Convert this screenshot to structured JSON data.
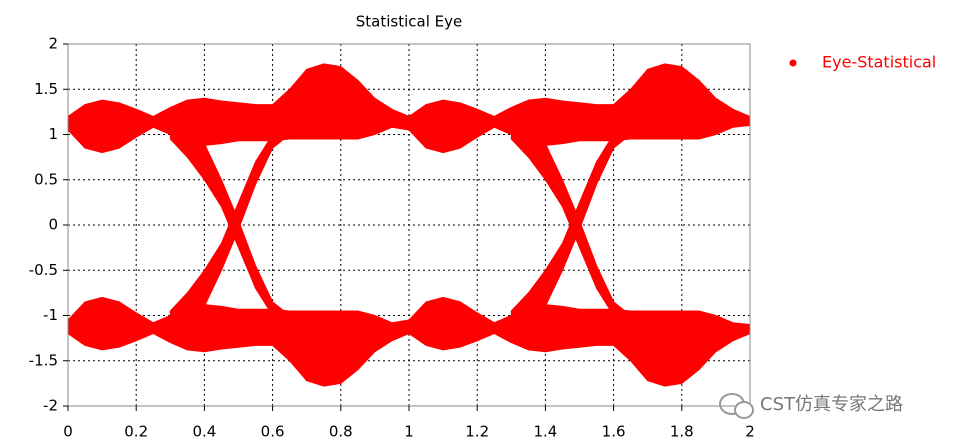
{
  "chart_data": {
    "type": "eye",
    "title": "Statistical Eye",
    "xlim": [
      0,
      2
    ],
    "xticks": [
      0,
      0.2,
      0.4,
      0.6,
      0.8,
      1,
      1.2,
      1.4,
      1.6,
      1.8,
      2
    ],
    "ylim": [
      -2,
      2
    ],
    "yticks": [
      -2,
      -1.5,
      -1,
      -0.5,
      0,
      0.5,
      1,
      1.5,
      2
    ],
    "grid": true,
    "legend": "right",
    "series": [
      {
        "name": "Eye-Statistical",
        "color": "#ff0000",
        "bands": [
          {
            "x": [
              0,
              0.05,
              0.1,
              0.15,
              0.2,
              0.25,
              0.3,
              0.35,
              0.4,
              0.45,
              0.5,
              0.55,
              0.6,
              0.65,
              0.7,
              0.75,
              0.8,
              0.85,
              0.9,
              0.95,
              1,
              1.05,
              1.1,
              1.15,
              1.2,
              1.25,
              1.3,
              1.35,
              1.4,
              1.45,
              1.5,
              1.55,
              1.6,
              1.65,
              1.7,
              1.75,
              1.8,
              1.85,
              1.9,
              1.95,
              2
            ],
            "upper": [
              1.2,
              1.33,
              1.38,
              1.35,
              1.28,
              1.2,
              1.3,
              1.38,
              1.4,
              1.37,
              1.35,
              1.33,
              1.33,
              1.5,
              1.72,
              1.78,
              1.75,
              1.6,
              1.4,
              1.28,
              1.2,
              1.33,
              1.38,
              1.35,
              1.28,
              1.2,
              1.3,
              1.38,
              1.4,
              1.37,
              1.35,
              1.33,
              1.33,
              1.5,
              1.72,
              1.78,
              1.75,
              1.6,
              1.4,
              1.28,
              1.2
            ],
            "lower": [
              1.05,
              0.85,
              0.8,
              0.85,
              0.97,
              1.08,
              1.0,
              0.92,
              0.88,
              0.9,
              0.93,
              0.93,
              0.93,
              0.95,
              0.95,
              0.95,
              0.95,
              0.95,
              1.0,
              1.08,
              1.05,
              0.85,
              0.8,
              0.85,
              0.97,
              1.08,
              1.0,
              0.92,
              0.88,
              0.9,
              0.93,
              0.93,
              0.93,
              0.95,
              0.95,
              0.95,
              0.95,
              0.95,
              1.0,
              1.08,
              1.1
            ]
          },
          {
            "x": [
              0,
              0.05,
              0.1,
              0.15,
              0.2,
              0.25,
              0.3,
              0.35,
              0.4,
              0.45,
              0.5,
              0.55,
              0.6,
              0.65,
              0.7,
              0.75,
              0.8,
              0.85,
              0.9,
              0.95,
              1,
              1.05,
              1.1,
              1.15,
              1.2,
              1.25,
              1.3,
              1.35,
              1.4,
              1.45,
              1.5,
              1.55,
              1.6,
              1.65,
              1.7,
              1.75,
              1.8,
              1.85,
              1.9,
              1.95,
              2
            ],
            "upper": [
              -1.05,
              -0.85,
              -0.8,
              -0.85,
              -0.97,
              -1.08,
              -1.0,
              -0.92,
              -0.88,
              -0.9,
              -0.93,
              -0.93,
              -0.93,
              -0.95,
              -0.95,
              -0.95,
              -0.95,
              -0.95,
              -1.0,
              -1.08,
              -1.05,
              -0.85,
              -0.8,
              -0.85,
              -0.97,
              -1.08,
              -1.0,
              -0.92,
              -0.88,
              -0.9,
              -0.93,
              -0.93,
              -0.93,
              -0.95,
              -0.95,
              -0.95,
              -0.95,
              -0.95,
              -1.0,
              -1.08,
              -1.1
            ],
            "lower": [
              -1.2,
              -1.33,
              -1.38,
              -1.35,
              -1.28,
              -1.2,
              -1.3,
              -1.38,
              -1.4,
              -1.37,
              -1.35,
              -1.33,
              -1.33,
              -1.5,
              -1.72,
              -1.78,
              -1.75,
              -1.6,
              -1.4,
              -1.28,
              -1.2,
              -1.33,
              -1.38,
              -1.35,
              -1.28,
              -1.2,
              -1.3,
              -1.38,
              -1.4,
              -1.37,
              -1.35,
              -1.33,
              -1.33,
              -1.5,
              -1.72,
              -1.78,
              -1.75,
              -1.6,
              -1.4,
              -1.28,
              -1.2
            ]
          },
          {
            "x": [
              0.3,
              0.35,
              0.4,
              0.45,
              0.5,
              0.55,
              0.6,
              0.65
            ],
            "upper": [
              -0.95,
              -0.75,
              -0.5,
              -0.2,
              0.25,
              0.7,
              1.0,
              1.0
            ],
            "lower": [
              -1.0,
              -1.0,
              -0.9,
              -0.5,
              -0.05,
              0.45,
              0.85,
              1.0
            ]
          },
          {
            "x": [
              0.3,
              0.35,
              0.4,
              0.45,
              0.5,
              0.55,
              0.6,
              0.65
            ],
            "upper": [
              1.0,
              1.0,
              0.9,
              0.5,
              0.05,
              -0.45,
              -0.85,
              -1.0
            ],
            "lower": [
              0.95,
              0.75,
              0.5,
              0.2,
              -0.25,
              -0.7,
              -1.0,
              -1.0
            ]
          },
          {
            "x": [
              1.3,
              1.35,
              1.4,
              1.45,
              1.5,
              1.55,
              1.6,
              1.65
            ],
            "upper": [
              -0.95,
              -0.75,
              -0.5,
              -0.2,
              0.25,
              0.7,
              1.0,
              1.0
            ],
            "lower": [
              -1.0,
              -1.0,
              -0.9,
              -0.5,
              -0.05,
              0.45,
              0.85,
              1.0
            ]
          },
          {
            "x": [
              1.3,
              1.35,
              1.4,
              1.45,
              1.5,
              1.55,
              1.6,
              1.65
            ],
            "upper": [
              1.0,
              1.0,
              0.9,
              0.5,
              0.05,
              -0.45,
              -0.85,
              -1.0
            ],
            "lower": [
              0.95,
              0.75,
              0.5,
              0.2,
              -0.25,
              -0.7,
              -1.0,
              -1.0
            ]
          }
        ]
      }
    ]
  },
  "watermark": "CST仿真专家之路"
}
